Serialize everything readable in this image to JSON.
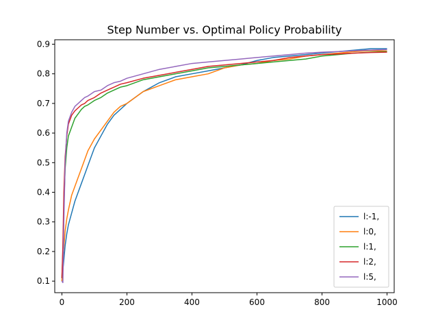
{
  "chart_data": {
    "type": "line",
    "title": "Step Number vs. Optimal Policy Probability",
    "xlabel": "",
    "ylabel": "",
    "xlim": [
      -22,
      1022
    ],
    "ylim": [
      0.061,
      0.915
    ],
    "xticks": [
      0,
      200,
      400,
      600,
      800,
      1000
    ],
    "yticks": [
      0.1,
      0.2,
      0.3,
      0.4,
      0.5,
      0.6,
      0.7,
      0.8,
      0.9
    ],
    "grid": false,
    "legend_position": "lower-right",
    "series": [
      {
        "name": "l:-1,",
        "color": "#1f77b4",
        "x": [
          0,
          5,
          10,
          15,
          20,
          30,
          40,
          50,
          60,
          70,
          80,
          90,
          100,
          120,
          140,
          160,
          180,
          200,
          250,
          300,
          350,
          400,
          450,
          500,
          550,
          600,
          650,
          700,
          750,
          800,
          850,
          900,
          950,
          1000
        ],
        "y": [
          0.1,
          0.16,
          0.22,
          0.26,
          0.29,
          0.33,
          0.37,
          0.4,
          0.43,
          0.46,
          0.49,
          0.52,
          0.55,
          0.59,
          0.63,
          0.66,
          0.68,
          0.7,
          0.74,
          0.77,
          0.79,
          0.8,
          0.81,
          0.82,
          0.83,
          0.845,
          0.855,
          0.86,
          0.865,
          0.87,
          0.875,
          0.88,
          0.885,
          0.885
        ]
      },
      {
        "name": "l:0,",
        "color": "#ff7f0e",
        "x": [
          0,
          5,
          10,
          15,
          20,
          30,
          40,
          50,
          60,
          70,
          80,
          90,
          100,
          120,
          140,
          160,
          180,
          200,
          250,
          300,
          350,
          400,
          450,
          500,
          550,
          600,
          650,
          700,
          750,
          800,
          850,
          900,
          950,
          1000
        ],
        "y": [
          0.1,
          0.2,
          0.27,
          0.31,
          0.34,
          0.39,
          0.42,
          0.45,
          0.48,
          0.51,
          0.54,
          0.56,
          0.58,
          0.61,
          0.64,
          0.67,
          0.69,
          0.7,
          0.74,
          0.76,
          0.78,
          0.79,
          0.8,
          0.82,
          0.83,
          0.835,
          0.845,
          0.85,
          0.86,
          0.865,
          0.87,
          0.875,
          0.878,
          0.877
        ]
      },
      {
        "name": "l:1,",
        "color": "#2ca02c",
        "x": [
          0,
          3,
          6,
          10,
          15,
          20,
          30,
          40,
          50,
          60,
          70,
          80,
          100,
          120,
          140,
          160,
          180,
          200,
          250,
          300,
          350,
          400,
          450,
          500,
          550,
          600,
          650,
          700,
          750,
          800,
          850,
          900,
          950,
          1000
        ],
        "y": [
          0.11,
          0.2,
          0.35,
          0.48,
          0.55,
          0.59,
          0.62,
          0.65,
          0.665,
          0.68,
          0.69,
          0.695,
          0.71,
          0.72,
          0.735,
          0.745,
          0.755,
          0.76,
          0.78,
          0.79,
          0.8,
          0.81,
          0.82,
          0.825,
          0.83,
          0.835,
          0.84,
          0.845,
          0.85,
          0.86,
          0.865,
          0.87,
          0.873,
          0.875
        ]
      },
      {
        "name": "l:2,",
        "color": "#d62728",
        "x": [
          0,
          3,
          6,
          10,
          15,
          20,
          30,
          40,
          50,
          60,
          70,
          80,
          100,
          120,
          140,
          160,
          180,
          200,
          250,
          300,
          350,
          400,
          450,
          500,
          550,
          600,
          650,
          700,
          750,
          800,
          850,
          900,
          950,
          1000
        ],
        "y": [
          0.11,
          0.22,
          0.4,
          0.52,
          0.59,
          0.63,
          0.66,
          0.675,
          0.685,
          0.695,
          0.7,
          0.71,
          0.72,
          0.735,
          0.745,
          0.755,
          0.765,
          0.77,
          0.785,
          0.795,
          0.805,
          0.815,
          0.825,
          0.83,
          0.835,
          0.84,
          0.845,
          0.855,
          0.86,
          0.865,
          0.867,
          0.87,
          0.872,
          0.873
        ]
      },
      {
        "name": "l:5,",
        "color": "#9467bd",
        "x": [
          0,
          3,
          6,
          10,
          15,
          20,
          30,
          40,
          50,
          60,
          70,
          80,
          100,
          120,
          140,
          160,
          180,
          200,
          250,
          300,
          350,
          400,
          450,
          500,
          550,
          600,
          650,
          700,
          750,
          800,
          850,
          900,
          950,
          1000
        ],
        "y": [
          0.1,
          0.095,
          0.3,
          0.5,
          0.6,
          0.64,
          0.67,
          0.69,
          0.7,
          0.71,
          0.72,
          0.725,
          0.74,
          0.745,
          0.76,
          0.77,
          0.775,
          0.785,
          0.8,
          0.815,
          0.825,
          0.835,
          0.84,
          0.845,
          0.85,
          0.855,
          0.86,
          0.865,
          0.87,
          0.873,
          0.875,
          0.878,
          0.88,
          0.882
        ]
      }
    ]
  }
}
